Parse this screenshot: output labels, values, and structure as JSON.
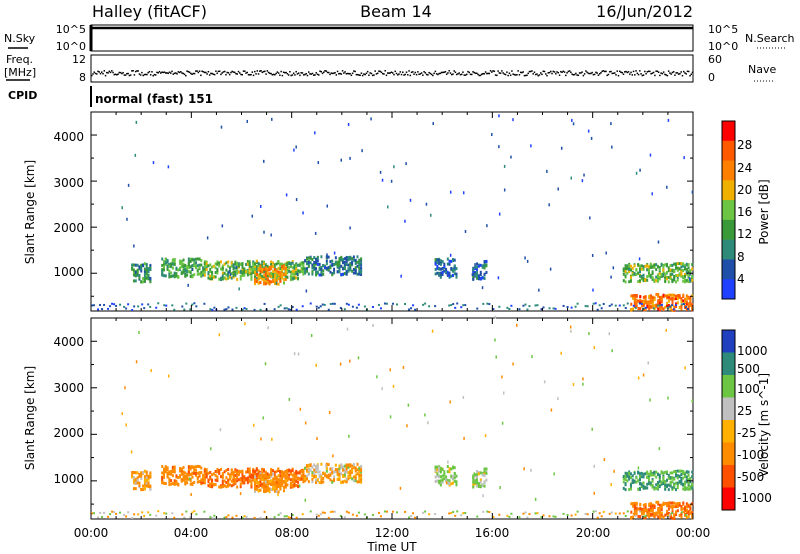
{
  "header": {
    "station": "Halley (fitACF)",
    "beam": "Beam 14",
    "date": "16/Jun/2012"
  },
  "top_panels": {
    "nsky_label": "N.Sky",
    "nsearch_label": "N.Search",
    "nsky_ticks": [
      "10^5",
      "10^0"
    ],
    "nsearch_ticks": [
      "10^5",
      "10^0"
    ],
    "freq_label_line1": "Freq.",
    "freq_label_line2": "[MHz]",
    "freq_ticks": [
      "12",
      "8"
    ],
    "nave_label": "Nave",
    "nave_ticks": [
      "60",
      "0"
    ],
    "cpid_label": "CPID",
    "cpid_text": "normal (fast) 151"
  },
  "x_axis": {
    "label": "Time UT",
    "ticks": [
      "00:00",
      "04:00",
      "08:00",
      "12:00",
      "16:00",
      "20:00",
      "00:00"
    ]
  },
  "power_panel": {
    "ylabel": "Slant Range [km]",
    "yticks": [
      "4000",
      "3000",
      "2000",
      "1000"
    ],
    "colorbar_label": "Power [dB]",
    "colorbar_ticks": [
      "28",
      "24",
      "20",
      "16",
      "12",
      "8",
      "4"
    ],
    "colors": [
      "#2040ff",
      "#1f4fa8",
      "#2e8b7a",
      "#3a9a3a",
      "#6cc644",
      "#f0b000",
      "#ff8000",
      "#ff5a00",
      "#ff0000"
    ]
  },
  "velocity_panel": {
    "ylabel": "Slant Range [km]",
    "yticks": [
      "4000",
      "3000",
      "2000",
      "1000"
    ],
    "colorbar_label": "Velocity [m s^-1]",
    "colorbar_ticks": [
      "1000",
      "500",
      "100",
      "25",
      "-25",
      "-100",
      "-500",
      "-1000"
    ],
    "colors": [
      "#2040c0",
      "#2e8b7a",
      "#6cc644",
      "#c0c0c0",
      "#ffb000",
      "#ff8c00",
      "#ff5000",
      "#ff0000"
    ]
  },
  "chart_data": {
    "type": "heatmap",
    "title": "Beam 14",
    "xlabel": "Time UT",
    "ylabel": "Slant Range [km]",
    "xlim": [
      0,
      24
    ],
    "ylim": [
      180,
      4500
    ],
    "echo_regions": [
      {
        "t_start": 1.6,
        "t_end": 2.4,
        "range_km": 1000,
        "power_db": 10,
        "velocity": -100
      },
      {
        "t_start": 2.8,
        "t_end": 4.5,
        "range_km": 1100,
        "power_db": 12,
        "velocity": -200
      },
      {
        "t_start": 4.5,
        "t_end": 8.5,
        "range_km": 1050,
        "power_db": 14,
        "velocity": -300
      },
      {
        "t_start": 6.5,
        "t_end": 7.8,
        "range_km": 950,
        "power_db": 22,
        "velocity": -100
      },
      {
        "t_start": 8.5,
        "t_end": 10.8,
        "range_km": 1150,
        "power_db": 8,
        "velocity": -50
      },
      {
        "t_start": 13.7,
        "t_end": 14.6,
        "range_km": 1100,
        "power_db": 6,
        "velocity": 100
      },
      {
        "t_start": 15.2,
        "t_end": 15.8,
        "range_km": 1050,
        "power_db": 6,
        "velocity": 100
      },
      {
        "t_start": 21.2,
        "t_end": 24,
        "range_km": 1000,
        "power_db": 14,
        "velocity": 300
      },
      {
        "t_start": 21.5,
        "t_end": 24,
        "range_km": 330,
        "power_db": 24,
        "velocity": -300
      }
    ]
  }
}
